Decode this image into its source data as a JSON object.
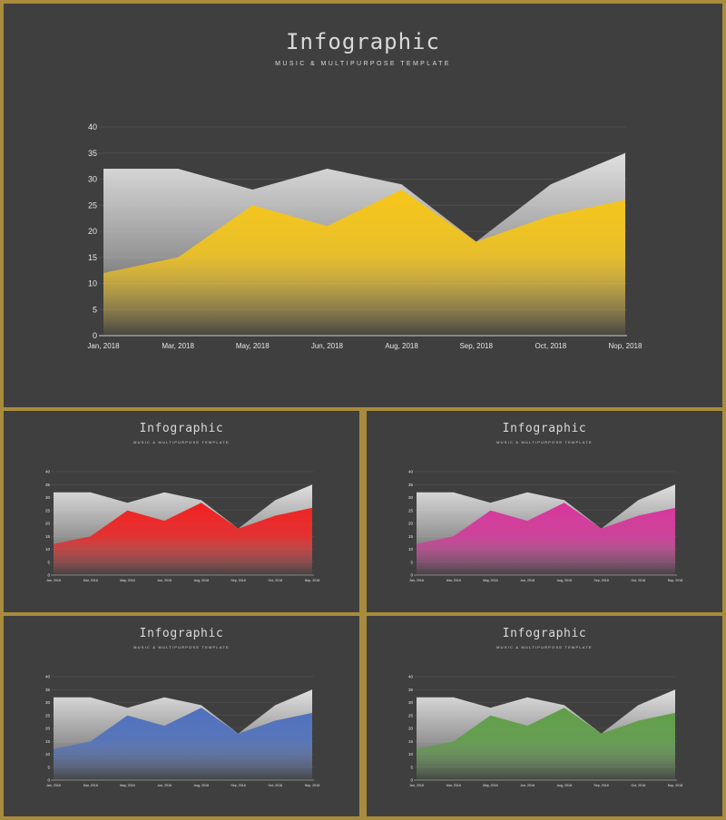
{
  "main_panel": {
    "title": "Infographic",
    "subtitle": "MUSIC & MULTIPURPOSE TEMPLATE",
    "accent": "#f5c518"
  },
  "small_panels": [
    {
      "title": "Infographic",
      "subtitle": "MUSIC & MULTIPURPOSE TEMPLATE",
      "accent": "#f01f1f"
    },
    {
      "title": "Infographic",
      "subtitle": "MUSIC & MULTIPURPOSE TEMPLATE",
      "accent": "#d6349a"
    },
    {
      "title": "Infographic",
      "subtitle": "MUSIC & MULTIPURPOSE TEMPLATE",
      "accent": "#4d6fbe"
    },
    {
      "title": "Infographic",
      "subtitle": "MUSIC & MULTIPURPOSE TEMPLATE",
      "accent": "#5e9e46"
    }
  ],
  "chart_data": [
    {
      "type": "area",
      "categories": [
        "Jan, 2018",
        "Mar, 2018",
        "May, 2018",
        "Jun, 2018",
        "Aug, 2018",
        "Sep, 2018",
        "Oct, 2018",
        "Nop, 2018"
      ],
      "series": [
        {
          "values": [
            32,
            32,
            28,
            32,
            29,
            18,
            29,
            35
          ],
          "color": "#e0e0e0"
        },
        {
          "values": [
            12,
            15,
            25,
            21,
            28,
            18,
            23,
            26
          ],
          "color": "#f5c518"
        }
      ],
      "ylim": [
        0,
        40
      ],
      "yticks": [
        0,
        5,
        10,
        15,
        20,
        25,
        30,
        35,
        40
      ],
      "grid": true
    },
    {
      "type": "area",
      "categories": [
        "Jan, 2018",
        "Mar, 2018",
        "May, 2018",
        "Jun, 2018",
        "Aug, 2018",
        "Sep, 2018",
        "Oct, 2018",
        "Nop, 2018"
      ],
      "series": [
        {
          "values": [
            32,
            32,
            28,
            32,
            29,
            18,
            29,
            35
          ],
          "color": "#e0e0e0"
        },
        {
          "values": [
            12,
            15,
            25,
            21,
            28,
            18,
            23,
            26
          ],
          "color": "#f01f1f"
        }
      ],
      "ylim": [
        0,
        40
      ],
      "yticks": [
        0,
        5,
        10,
        15,
        20,
        25,
        30,
        35,
        40
      ],
      "grid": true
    },
    {
      "type": "area",
      "categories": [
        "Jan, 2018",
        "Mar, 2018",
        "May, 2018",
        "Jun, 2018",
        "Aug, 2018",
        "Sep, 2018",
        "Oct, 2018",
        "Nop, 2018"
      ],
      "series": [
        {
          "values": [
            32,
            32,
            28,
            32,
            29,
            18,
            29,
            35
          ],
          "color": "#e0e0e0"
        },
        {
          "values": [
            12,
            15,
            25,
            21,
            28,
            18,
            23,
            26
          ],
          "color": "#d6349a"
        }
      ],
      "ylim": [
        0,
        40
      ],
      "yticks": [
        0,
        5,
        10,
        15,
        20,
        25,
        30,
        35,
        40
      ],
      "grid": true
    },
    {
      "type": "area",
      "categories": [
        "Jan, 2018",
        "Mar, 2018",
        "May, 2018",
        "Jun, 2018",
        "Aug, 2018",
        "Sep, 2018",
        "Oct, 2018",
        "Nop, 2018"
      ],
      "series": [
        {
          "values": [
            32,
            32,
            28,
            32,
            29,
            18,
            29,
            35
          ],
          "color": "#e0e0e0"
        },
        {
          "values": [
            12,
            15,
            25,
            21,
            28,
            18,
            23,
            26
          ],
          "color": "#4d6fbe"
        }
      ],
      "ylim": [
        0,
        40
      ],
      "yticks": [
        0,
        5,
        10,
        15,
        20,
        25,
        30,
        35,
        40
      ],
      "grid": true
    },
    {
      "type": "area",
      "categories": [
        "Jan, 2018",
        "Mar, 2018",
        "May, 2018",
        "Jun, 2018",
        "Aug, 2018",
        "Sep, 2018",
        "Oct, 2018",
        "Nop, 2018"
      ],
      "series": [
        {
          "values": [
            32,
            32,
            28,
            32,
            29,
            18,
            29,
            35
          ],
          "color": "#e0e0e0"
        },
        {
          "values": [
            12,
            15,
            25,
            21,
            28,
            18,
            23,
            26
          ],
          "color": "#5e9e46"
        }
      ],
      "ylim": [
        0,
        40
      ],
      "yticks": [
        0,
        5,
        10,
        15,
        20,
        25,
        30,
        35,
        40
      ],
      "grid": true
    }
  ]
}
